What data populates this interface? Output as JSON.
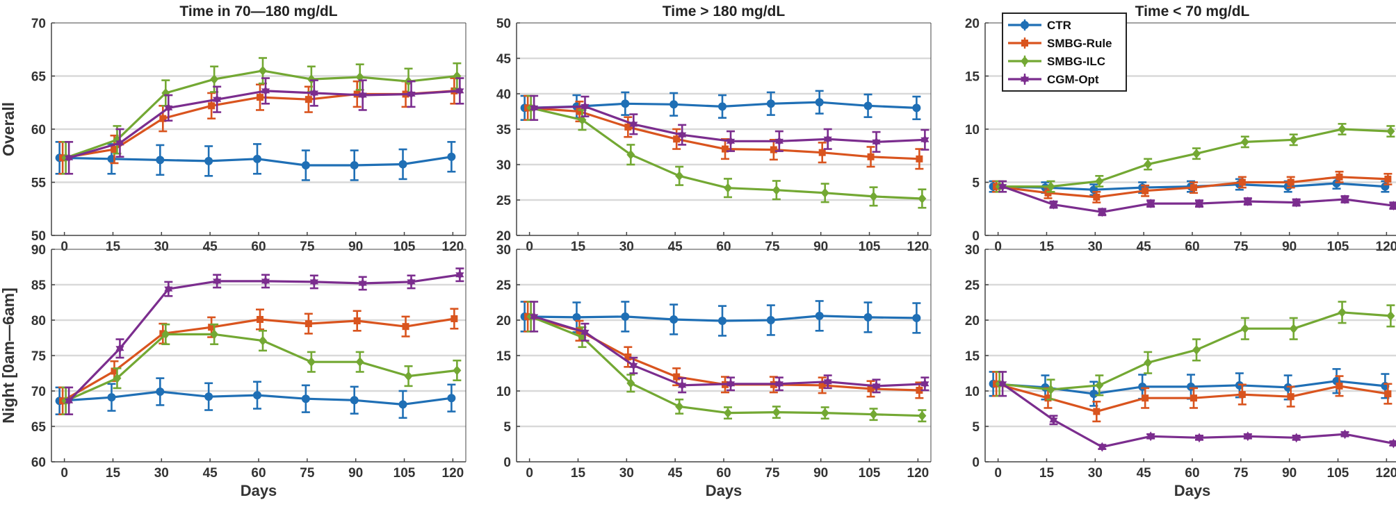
{
  "chart_data": {
    "type": "line",
    "x": [
      0,
      15,
      30,
      45,
      60,
      75,
      90,
      105,
      120
    ],
    "xticks": [
      "0",
      "15",
      "30",
      "45",
      "60",
      "75",
      "90",
      "105",
      "120"
    ],
    "xlabel": "Days",
    "row_labels": [
      "Overall",
      "Night [0am—6am]"
    ],
    "colors": {
      "CTR": "#1f6fb5",
      "SMBG-Rule": "#d9541e",
      "SMBG-ILC": "#73a833",
      "CGM-Opt": "#7b2d8e",
      "grid": "#d9d9d9",
      "axis": "#444444"
    },
    "legend": {
      "placement": "top-left of top-right panel",
      "entries": [
        "CTR",
        "SMBG-Rule",
        "SMBG-ILC",
        "CGM-Opt"
      ]
    },
    "panels": [
      {
        "id": "overall-70-180",
        "row": 0,
        "col": 0,
        "title": "Time in 70—180 mg/dL",
        "ylim": [
          50,
          70
        ],
        "yticks": [
          50,
          55,
          60,
          65,
          70
        ],
        "series": [
          {
            "name": "CTR",
            "values": [
              57.3,
              57.2,
              57.1,
              57.0,
              57.2,
              56.6,
              56.6,
              56.7,
              57.4
            ],
            "err": [
              1.5,
              1.4,
              1.4,
              1.4,
              1.4,
              1.4,
              1.4,
              1.4,
              1.4
            ]
          },
          {
            "name": "SMBG-Rule",
            "values": [
              57.3,
              58.1,
              61.0,
              62.2,
              63.0,
              62.8,
              63.3,
              63.3,
              63.6
            ],
            "err": [
              1.5,
              1.3,
              1.2,
              1.2,
              1.2,
              1.2,
              1.2,
              1.2,
              1.2
            ]
          },
          {
            "name": "SMBG-ILC",
            "values": [
              57.3,
              59.0,
              63.4,
              64.7,
              65.5,
              64.7,
              64.9,
              64.5,
              65.0
            ],
            "err": [
              1.5,
              1.3,
              1.2,
              1.2,
              1.2,
              1.2,
              1.2,
              1.2,
              1.2
            ]
          },
          {
            "name": "CGM-Opt",
            "values": [
              57.3,
              58.7,
              62.0,
              62.8,
              63.6,
              63.4,
              63.2,
              63.3,
              63.6
            ],
            "err": [
              1.5,
              1.3,
              1.2,
              1.2,
              1.2,
              1.2,
              1.4,
              1.2,
              1.2
            ]
          }
        ]
      },
      {
        "id": "overall-gt180",
        "row": 0,
        "col": 1,
        "title": "Time > 180 mg/dL",
        "ylim": [
          20,
          50
        ],
        "yticks": [
          20,
          25,
          30,
          35,
          40,
          45,
          50
        ],
        "series": [
          {
            "name": "CTR",
            "values": [
              38.0,
              38.2,
              38.6,
              38.5,
              38.2,
              38.6,
              38.8,
              38.3,
              38.0
            ],
            "err": [
              1.7,
              1.6,
              1.6,
              1.6,
              1.6,
              1.6,
              1.6,
              1.6,
              1.6
            ]
          },
          {
            "name": "SMBG-Rule",
            "values": [
              38.0,
              37.5,
              35.3,
              33.6,
              32.2,
              32.1,
              31.7,
              31.1,
              30.8
            ],
            "err": [
              1.7,
              1.4,
              1.4,
              1.4,
              1.4,
              1.4,
              1.4,
              1.4,
              1.4
            ]
          },
          {
            "name": "SMBG-ILC",
            "values": [
              38.0,
              36.3,
              31.4,
              28.4,
              26.7,
              26.4,
              26.0,
              25.5,
              25.2
            ],
            "err": [
              1.7,
              1.4,
              1.4,
              1.3,
              1.3,
              1.3,
              1.3,
              1.3,
              1.3
            ]
          },
          {
            "name": "CGM-Opt",
            "values": [
              38.0,
              38.2,
              35.7,
              34.2,
              33.3,
              33.3,
              33.6,
              33.2,
              33.5
            ],
            "err": [
              1.7,
              1.4,
              1.4,
              1.4,
              1.4,
              1.4,
              1.4,
              1.4,
              1.4
            ]
          }
        ]
      },
      {
        "id": "overall-lt70",
        "row": 0,
        "col": 2,
        "title": "Time < 70 mg/dL",
        "ylim": [
          0,
          20
        ],
        "yticks": [
          0,
          5,
          10,
          15,
          20
        ],
        "series": [
          {
            "name": "CTR",
            "values": [
              4.6,
              4.5,
              4.3,
              4.5,
              4.6,
              4.8,
              4.6,
              4.9,
              4.6
            ],
            "err": [
              0.5,
              0.5,
              0.5,
              0.5,
              0.5,
              0.5,
              0.5,
              0.5,
              0.5
            ]
          },
          {
            "name": "SMBG-Rule",
            "values": [
              4.6,
              4.0,
              3.6,
              4.2,
              4.5,
              5.0,
              5.0,
              5.5,
              5.3
            ],
            "err": [
              0.5,
              0.5,
              0.5,
              0.5,
              0.5,
              0.5,
              0.5,
              0.5,
              0.5
            ]
          },
          {
            "name": "SMBG-ILC",
            "values": [
              4.6,
              4.6,
              5.1,
              6.7,
              7.7,
              8.8,
              9.0,
              10.0,
              9.8
            ],
            "err": [
              0.5,
              0.5,
              0.5,
              0.5,
              0.5,
              0.5,
              0.5,
              0.5,
              0.5
            ]
          },
          {
            "name": "CGM-Opt",
            "values": [
              4.6,
              2.9,
              2.2,
              3.0,
              3.0,
              3.2,
              3.1,
              3.4,
              2.8
            ],
            "err": [
              0.5,
              0.3,
              0.3,
              0.3,
              0.3,
              0.3,
              0.3,
              0.3,
              0.3
            ]
          }
        ]
      },
      {
        "id": "night-70-180",
        "row": 1,
        "col": 0,
        "title": "",
        "ylim": [
          60,
          90
        ],
        "yticks": [
          60,
          65,
          70,
          75,
          80,
          85,
          90
        ],
        "series": [
          {
            "name": "CTR",
            "values": [
              68.6,
              69.1,
              69.9,
              69.2,
              69.4,
              68.9,
              68.7,
              68.1,
              69.0
            ],
            "err": [
              1.9,
              1.9,
              1.9,
              1.9,
              1.9,
              1.9,
              1.9,
              1.9,
              1.9
            ]
          },
          {
            "name": "SMBG-Rule",
            "values": [
              68.6,
              72.8,
              78.1,
              79.0,
              80.1,
              79.5,
              79.9,
              79.1,
              80.2
            ],
            "err": [
              1.9,
              1.4,
              1.4,
              1.4,
              1.4,
              1.4,
              1.4,
              1.4,
              1.4
            ]
          },
          {
            "name": "SMBG-ILC",
            "values": [
              68.6,
              71.8,
              78.0,
              78.0,
              77.1,
              74.1,
              74.1,
              72.1,
              72.9
            ],
            "err": [
              1.9,
              1.4,
              1.4,
              1.4,
              1.4,
              1.4,
              1.4,
              1.4,
              1.4
            ]
          },
          {
            "name": "CGM-Opt",
            "values": [
              68.6,
              76.0,
              84.4,
              85.5,
              85.5,
              85.4,
              85.2,
              85.4,
              86.4
            ],
            "err": [
              1.9,
              1.3,
              1.0,
              0.9,
              0.9,
              0.9,
              0.9,
              0.9,
              0.9
            ]
          }
        ]
      },
      {
        "id": "night-gt180",
        "row": 1,
        "col": 1,
        "title": "",
        "ylim": [
          0,
          30
        ],
        "yticks": [
          0,
          5,
          10,
          15,
          20,
          25,
          30
        ],
        "series": [
          {
            "name": "CTR",
            "values": [
              20.5,
              20.4,
              20.5,
              20.1,
              19.9,
              20.0,
              20.6,
              20.4,
              20.3
            ],
            "err": [
              2.1,
              2.1,
              2.1,
              2.1,
              2.1,
              2.1,
              2.1,
              2.1,
              2.1
            ]
          },
          {
            "name": "SMBG-Rule",
            "values": [
              20.5,
              18.5,
              14.8,
              12.0,
              10.9,
              10.9,
              10.8,
              10.3,
              10.1
            ],
            "err": [
              2.1,
              1.4,
              1.4,
              1.2,
              1.1,
              1.1,
              1.1,
              1.1,
              1.1
            ]
          },
          {
            "name": "SMBG-ILC",
            "values": [
              20.5,
              17.6,
              11.1,
              7.8,
              6.9,
              7.0,
              6.9,
              6.7,
              6.5
            ],
            "err": [
              2.1,
              1.4,
              1.2,
              1.0,
              0.8,
              0.8,
              0.8,
              0.8,
              0.8
            ]
          },
          {
            "name": "CGM-Opt",
            "values": [
              20.5,
              18.3,
              13.6,
              10.8,
              11.0,
              11.0,
              11.3,
              10.7,
              11.0
            ],
            "err": [
              2.1,
              1.2,
              1.1,
              1.0,
              0.9,
              0.9,
              0.9,
              0.9,
              0.9
            ]
          }
        ]
      },
      {
        "id": "night-lt70",
        "row": 1,
        "col": 2,
        "title": "",
        "ylim": [
          0,
          30
        ],
        "yticks": [
          0,
          5,
          10,
          15,
          20,
          25,
          30
        ],
        "series": [
          {
            "name": "CTR",
            "values": [
              11.0,
              10.5,
              9.6,
              10.6,
              10.6,
              10.8,
              10.5,
              11.4,
              10.7
            ],
            "err": [
              1.7,
              1.7,
              1.7,
              1.7,
              1.7,
              1.7,
              1.7,
              1.7,
              1.7
            ]
          },
          {
            "name": "SMBG-Rule",
            "values": [
              11.0,
              9.0,
              7.1,
              9.0,
              9.0,
              9.5,
              9.2,
              10.7,
              9.6
            ],
            "err": [
              1.7,
              1.4,
              1.4,
              1.4,
              1.4,
              1.4,
              1.4,
              1.4,
              1.4
            ]
          },
          {
            "name": "SMBG-ILC",
            "values": [
              11.0,
              10.2,
              10.8,
              14.0,
              15.8,
              18.8,
              18.8,
              21.1,
              20.6
            ],
            "err": [
              1.7,
              1.4,
              1.4,
              1.5,
              1.5,
              1.5,
              1.5,
              1.5,
              1.5
            ]
          },
          {
            "name": "CGM-Opt",
            "values": [
              11.0,
              5.9,
              2.1,
              3.6,
              3.4,
              3.6,
              3.4,
              3.9,
              2.6
            ],
            "err": [
              1.7,
              0.6,
              0.3,
              0.3,
              0.3,
              0.3,
              0.3,
              0.3,
              0.3
            ]
          }
        ]
      }
    ]
  }
}
